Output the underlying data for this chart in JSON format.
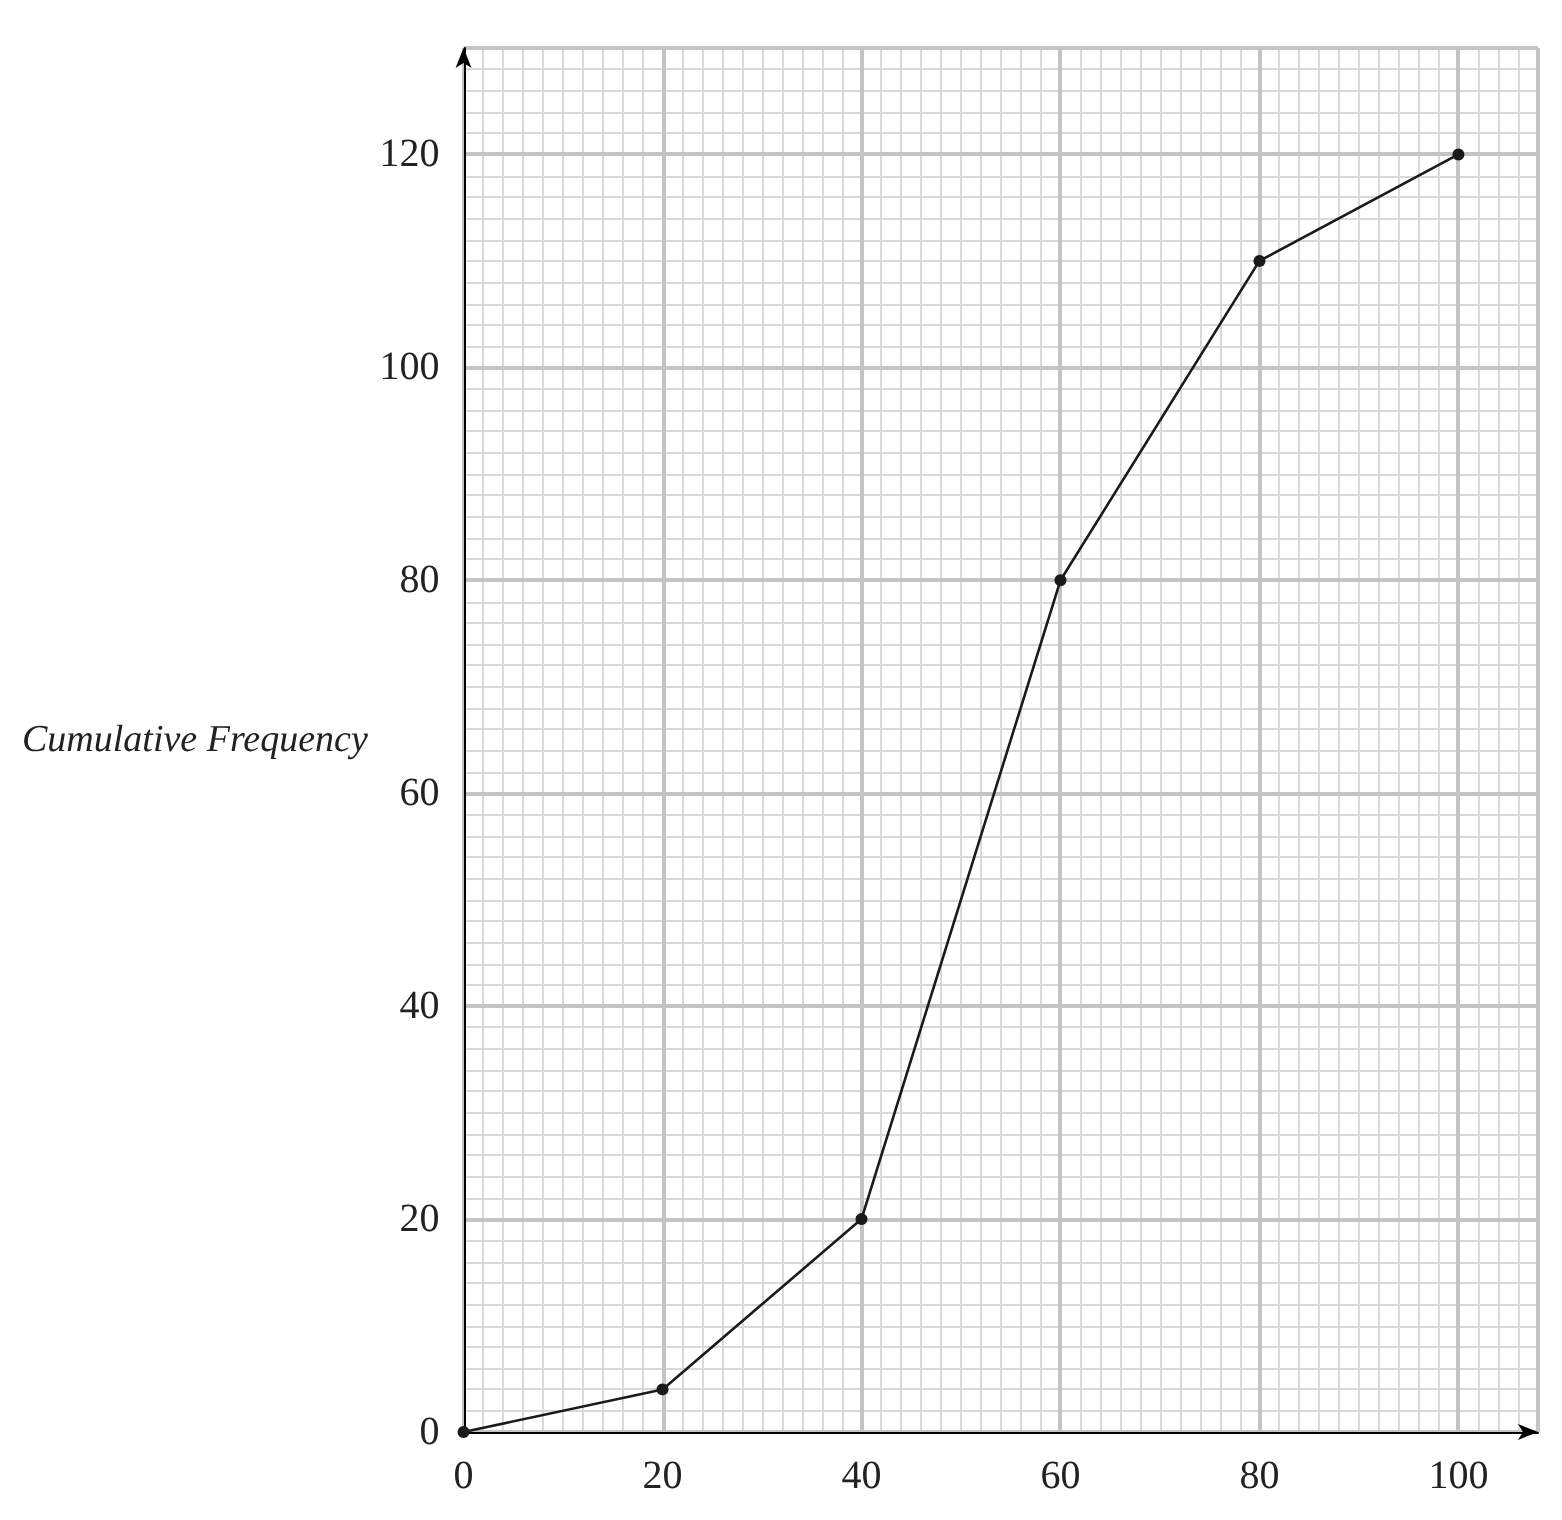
{
  "chart_data": {
    "type": "line",
    "ylabel": "Cumulative Frequency",
    "x": [
      0,
      20,
      40,
      60,
      80,
      100
    ],
    "series": [
      {
        "color": "#1a1a1a",
        "values": [
          0,
          4,
          20,
          80,
          110,
          120
        ]
      }
    ],
    "xlim": [
      0,
      108
    ],
    "xticks": [
      0,
      20,
      40,
      60,
      80,
      100
    ],
    "ylim": [
      0,
      130
    ],
    "yticks": [
      0,
      20,
      40,
      60,
      80,
      100,
      120
    ],
    "grid": true,
    "marker": "circle",
    "line_style": "solid"
  }
}
